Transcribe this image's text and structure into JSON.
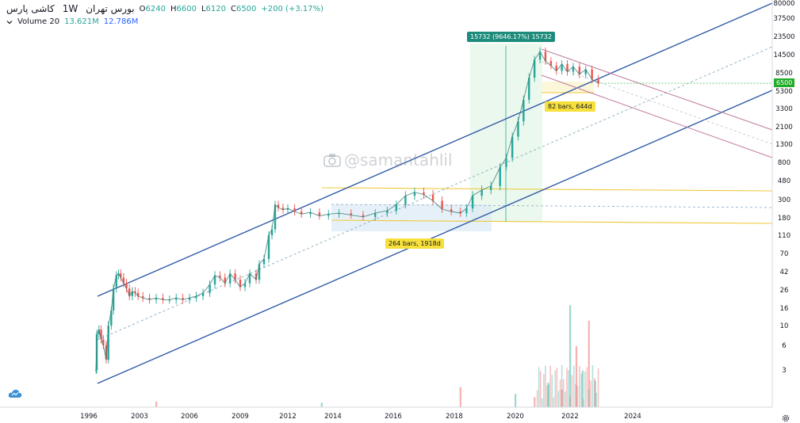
{
  "legend": {
    "symbol": "کاشی پارس",
    "timeframe": "1W",
    "exchange": "بورس تهران",
    "ohlc": [
      {
        "label": "O",
        "value": "6240"
      },
      {
        "label": "H",
        "value": "6600"
      },
      {
        "label": "L",
        "value": "6120"
      },
      {
        "label": "C",
        "value": "6500"
      }
    ],
    "change": "+200 (+3.17%)",
    "volume_label": "Volume 20",
    "volume_value_a": "13.621M",
    "volume_value_b": "12.786M"
  },
  "watermark": "@samantahlil",
  "annotations": {
    "measure": "15732 (9646.17%) 15732",
    "range_a": "264 bars, 1918d",
    "range_b": "82 bars, 644d"
  },
  "last_price_label": "6500",
  "icons": {
    "legend_toggle": "chevron-down-icon",
    "logo": "cloud-logo-icon",
    "settings": "gear-icon"
  },
  "colors": {
    "up": "#26a69a",
    "down": "#ef5350",
    "channel": "#2f5aa8",
    "zone": "#f0c93a",
    "measure_fill": "#d9f2df",
    "range_fill": "#dbe9f5",
    "falling_channel": "#c07aa0",
    "last_price": "#22ab2a"
  },
  "chart_data": {
    "type": "candlestick",
    "title": "کاشی پارس",
    "yscale": "log",
    "ylim": [
      1.5,
      80000
    ],
    "xlim": [
      1995.5,
      2027.5
    ],
    "x_ticks": [
      "1996",
      "2003",
      "2006",
      "2009",
      "2012",
      "2014",
      "2016",
      "2018",
      "2020",
      "2022",
      "2024"
    ],
    "y_ticks": [
      "80000",
      "37500",
      "23500",
      "14500",
      "8500",
      "5300",
      "3300",
      "2100",
      "1300",
      "800",
      "480",
      "300",
      "180",
      "110",
      "70",
      "42",
      "26",
      "16",
      "10",
      "6",
      "3"
    ],
    "last_price": 6500,
    "price_series": [
      {
        "t": 1997.0,
        "v": 3
      },
      {
        "t": 1997.1,
        "v": 8
      },
      {
        "t": 1997.4,
        "v": 9
      },
      {
        "t": 1997.7,
        "v": 7
      },
      {
        "t": 1998.0,
        "v": 6
      },
      {
        "t": 1998.4,
        "v": 4
      },
      {
        "t": 1998.7,
        "v": 10
      },
      {
        "t": 1999.1,
        "v": 15
      },
      {
        "t": 1999.4,
        "v": 27
      },
      {
        "t": 1999.8,
        "v": 38
      },
      {
        "t": 2000.1,
        "v": 40
      },
      {
        "t": 2000.4,
        "v": 36
      },
      {
        "t": 2000.8,
        "v": 31
      },
      {
        "t": 2001.2,
        "v": 27
      },
      {
        "t": 2001.6,
        "v": 22
      },
      {
        "t": 2002.0,
        "v": 25
      },
      {
        "t": 2002.4,
        "v": 24
      },
      {
        "t": 2002.8,
        "v": 22
      },
      {
        "t": 2003.2,
        "v": 21
      },
      {
        "t": 2003.6,
        "v": 20
      },
      {
        "t": 2004.0,
        "v": 21
      },
      {
        "t": 2004.4,
        "v": 20
      },
      {
        "t": 2004.8,
        "v": 20
      },
      {
        "t": 2005.2,
        "v": 21
      },
      {
        "t": 2005.6,
        "v": 20
      },
      {
        "t": 2006.0,
        "v": 21
      },
      {
        "t": 2006.4,
        "v": 22
      },
      {
        "t": 2006.8,
        "v": 24
      },
      {
        "t": 2007.2,
        "v": 30
      },
      {
        "t": 2007.5,
        "v": 38
      },
      {
        "t": 2007.8,
        "v": 36
      },
      {
        "t": 2008.1,
        "v": 31
      },
      {
        "t": 2008.4,
        "v": 40
      },
      {
        "t": 2008.7,
        "v": 34
      },
      {
        "t": 2009.0,
        "v": 28
      },
      {
        "t": 2009.3,
        "v": 31
      },
      {
        "t": 2009.6,
        "v": 40
      },
      {
        "t": 2010.0,
        "v": 34
      },
      {
        "t": 2010.2,
        "v": 52
      },
      {
        "t": 2010.5,
        "v": 60
      },
      {
        "t": 2010.8,
        "v": 110
      },
      {
        "t": 2011.0,
        "v": 130
      },
      {
        "t": 2011.2,
        "v": 260
      },
      {
        "t": 2011.4,
        "v": 240
      },
      {
        "t": 2011.7,
        "v": 225
      },
      {
        "t": 2012.0,
        "v": 235
      },
      {
        "t": 2012.3,
        "v": 215
      },
      {
        "t": 2012.6,
        "v": 200
      },
      {
        "t": 2013.0,
        "v": 210
      },
      {
        "t": 2013.4,
        "v": 190
      },
      {
        "t": 2013.8,
        "v": 200
      },
      {
        "t": 2014.2,
        "v": 205
      },
      {
        "t": 2014.6,
        "v": 195
      },
      {
        "t": 2015.0,
        "v": 185
      },
      {
        "t": 2015.4,
        "v": 205
      },
      {
        "t": 2015.8,
        "v": 220
      },
      {
        "t": 2016.1,
        "v": 260
      },
      {
        "t": 2016.4,
        "v": 330
      },
      {
        "t": 2016.7,
        "v": 360
      },
      {
        "t": 2017.0,
        "v": 340
      },
      {
        "t": 2017.3,
        "v": 290
      },
      {
        "t": 2017.6,
        "v": 230
      },
      {
        "t": 2017.9,
        "v": 215
      },
      {
        "t": 2018.2,
        "v": 205
      },
      {
        "t": 2018.4,
        "v": 235
      },
      {
        "t": 2018.6,
        "v": 330
      },
      {
        "t": 2018.9,
        "v": 380
      },
      {
        "t": 2019.2,
        "v": 420
      },
      {
        "t": 2019.5,
        "v": 700
      },
      {
        "t": 2019.7,
        "v": 900
      },
      {
        "t": 2019.9,
        "v": 1600
      },
      {
        "t": 2020.1,
        "v": 2400
      },
      {
        "t": 2020.3,
        "v": 4200
      },
      {
        "t": 2020.5,
        "v": 7500
      },
      {
        "t": 2020.7,
        "v": 12500
      },
      {
        "t": 2020.9,
        "v": 15700
      },
      {
        "t": 2021.1,
        "v": 12000
      },
      {
        "t": 2021.3,
        "v": 10500
      },
      {
        "t": 2021.5,
        "v": 9000
      },
      {
        "t": 2021.7,
        "v": 11000
      },
      {
        "t": 2021.9,
        "v": 8800
      },
      {
        "t": 2022.1,
        "v": 10200
      },
      {
        "t": 2022.3,
        "v": 8200
      },
      {
        "t": 2022.5,
        "v": 9400
      },
      {
        "t": 2022.7,
        "v": 7200
      },
      {
        "t": 2022.9,
        "v": 6500
      }
    ],
    "volume_series": [
      {
        "t": 2004.0,
        "v": 0.05
      },
      {
        "t": 2013.5,
        "v": 0.04
      },
      {
        "t": 2018.2,
        "v": 0.18
      },
      {
        "t": 2020.0,
        "v": 0.12
      },
      {
        "t": 2020.7,
        "v": 0.09
      },
      {
        "t": 2021.2,
        "v": 0.22
      },
      {
        "t": 2021.7,
        "v": 0.16
      },
      {
        "t": 2022.0,
        "v": 0.92
      },
      {
        "t": 2022.2,
        "v": 0.55
      },
      {
        "t": 2022.4,
        "v": 0.33
      },
      {
        "t": 2022.6,
        "v": 0.78
      },
      {
        "t": 2022.8,
        "v": 0.24
      }
    ]
  }
}
